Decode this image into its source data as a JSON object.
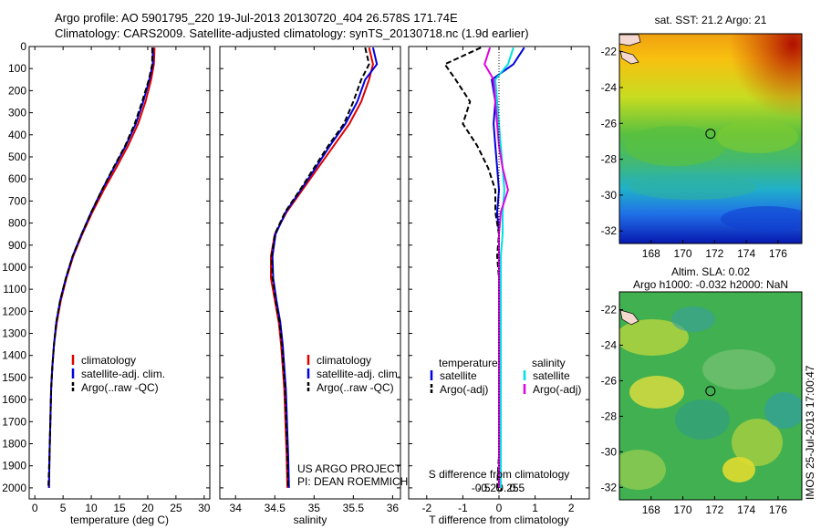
{
  "header": {
    "title_line1": "Argo profile: AO 5901795_220 19-Jul-2013 20130720_404 26.578S 171.74E",
    "title_line2": "Climatology: CARS2009. Satellite-adjusted climatology: synTS_20130718.nc (1.9d earlier)"
  },
  "footer": {
    "project_line1": "US ARGO PROJECT",
    "project_line2": "PI: DEAN ROEMMICH",
    "timestamp": "IMOS 25-Jul-2013 17:00:47"
  },
  "colors": {
    "climatology": "#e00000",
    "satellite": "#0000e0",
    "argo": "#000000",
    "salinity_satellite": "#00e0e0",
    "salinity_argo": "#e000e0"
  },
  "chart_data": [
    {
      "type": "line",
      "id": "temperature",
      "xlabel": "temperature (deg C)",
      "ylabel": "",
      "xlim": [
        -1,
        31
      ],
      "ylim": [
        2050,
        0
      ],
      "xticks": [
        0,
        5,
        10,
        15,
        20,
        25,
        30
      ],
      "yticks": [
        0,
        100,
        200,
        300,
        400,
        500,
        600,
        700,
        800,
        900,
        1000,
        1100,
        1200,
        1300,
        1400,
        1500,
        1600,
        1700,
        1800,
        1900,
        2000
      ],
      "legend": [
        "climatology",
        "satellite-adj. clim.",
        "Argo(..raw -QC)"
      ],
      "legend_position": "lower-middle",
      "series": [
        {
          "name": "climatology",
          "color": "#e00000",
          "style": "solid",
          "x": [
            21.2,
            21.1,
            20.6,
            19.6,
            18.3,
            16.5,
            14.4,
            12.2,
            10.2,
            8.4,
            6.8,
            5.6,
            4.6,
            3.9,
            3.4,
            3.1,
            2.9,
            2.8,
            2.7,
            2.6,
            2.5
          ],
          "y": [
            5,
            80,
            150,
            250,
            350,
            450,
            550,
            650,
            750,
            850,
            950,
            1050,
            1150,
            1250,
            1350,
            1450,
            1550,
            1650,
            1750,
            1850,
            2000
          ]
        },
        {
          "name": "satellite-adj. clim.",
          "color": "#0000e0",
          "style": "solid",
          "x": [
            20.9,
            20.9,
            20.3,
            19.2,
            17.9,
            16.1,
            14.0,
            11.9,
            10.0,
            8.3,
            6.7,
            5.5,
            4.5,
            3.8,
            3.4,
            3.1,
            2.9,
            2.8,
            2.7,
            2.6,
            2.5
          ],
          "y": [
            5,
            80,
            150,
            250,
            350,
            450,
            550,
            650,
            750,
            850,
            950,
            1050,
            1150,
            1250,
            1350,
            1450,
            1550,
            1650,
            1750,
            1850,
            2000
          ]
        },
        {
          "name": "Argo(..raw -QC)",
          "color": "#000000",
          "style": "dashed",
          "x": [
            20.8,
            20.8,
            20.2,
            19.0,
            17.7,
            16.0,
            13.9,
            11.9,
            10.0,
            8.3,
            6.7,
            5.5,
            4.5,
            3.8,
            3.4,
            3.1,
            2.9,
            2.8,
            2.7,
            2.6,
            2.4
          ],
          "y": [
            5,
            80,
            150,
            250,
            350,
            450,
            550,
            650,
            750,
            850,
            950,
            1050,
            1150,
            1250,
            1350,
            1450,
            1550,
            1650,
            1750,
            1850,
            2000
          ]
        }
      ]
    },
    {
      "type": "line",
      "id": "salinity",
      "xlabel": "salinity",
      "ylabel": "",
      "xlim": [
        33.8,
        36.1
      ],
      "ylim": [
        2050,
        0
      ],
      "xticks": [
        34,
        34.5,
        35,
        35.5,
        36
      ],
      "xticklabels": [
        "34",
        "34.5",
        "35",
        "35.5",
        "36"
      ],
      "legend": [
        "climatology",
        "satellite-adj. clim.",
        "Argo(..raw -QC)"
      ],
      "legend_position": "lower-middle",
      "series": [
        {
          "name": "climatology",
          "color": "#e00000",
          "style": "solid",
          "x": [
            35.7,
            35.75,
            35.7,
            35.6,
            35.45,
            35.25,
            35.05,
            34.85,
            34.65,
            34.5,
            34.45,
            34.45,
            34.5,
            34.55,
            34.58,
            34.6,
            34.62,
            34.63,
            34.64,
            34.65,
            34.66
          ],
          "y": [
            5,
            80,
            150,
            250,
            350,
            450,
            550,
            650,
            750,
            850,
            950,
            1050,
            1150,
            1250,
            1350,
            1450,
            1550,
            1650,
            1750,
            1850,
            2000
          ]
        },
        {
          "name": "satellite-adj. clim.",
          "color": "#0000e0",
          "style": "solid",
          "x": [
            35.75,
            35.8,
            35.65,
            35.55,
            35.4,
            35.2,
            35.02,
            34.83,
            34.64,
            34.51,
            34.47,
            34.48,
            34.52,
            34.57,
            34.6,
            34.62,
            34.64,
            34.65,
            34.66,
            34.67,
            34.68
          ],
          "y": [
            5,
            80,
            150,
            250,
            350,
            450,
            550,
            650,
            750,
            850,
            950,
            1050,
            1150,
            1250,
            1350,
            1450,
            1550,
            1650,
            1750,
            1850,
            2000
          ]
        },
        {
          "name": "Argo(..raw -QC)",
          "color": "#000000",
          "style": "dashed",
          "x": [
            35.65,
            35.7,
            35.6,
            35.5,
            35.38,
            35.18,
            35.0,
            34.82,
            34.63,
            34.5,
            34.46,
            34.47,
            34.51,
            34.56,
            34.59,
            34.61,
            34.63,
            34.64,
            34.65,
            34.66,
            34.67
          ],
          "y": [
            5,
            80,
            150,
            250,
            350,
            450,
            550,
            650,
            750,
            850,
            950,
            1050,
            1150,
            1250,
            1350,
            1450,
            1550,
            1650,
            1750,
            1850,
            2000
          ]
        }
      ]
    },
    {
      "type": "line",
      "id": "difference",
      "xlabel": "T difference from climatology",
      "x2label": "S difference from climatology",
      "ylabel": "",
      "xlim": [
        -2.5,
        2.5
      ],
      "ylim": [
        2050,
        0
      ],
      "xticks": [
        -2,
        -1,
        0,
        1,
        2
      ],
      "x2ticks": [
        -0.5,
        -0.25,
        0,
        0.25,
        0.5
      ],
      "x2ticklabels": [
        "-0.5",
        "-0.25",
        "0",
        "0.25",
        "0.5"
      ],
      "legend_headers": [
        "temperature",
        "salinity"
      ],
      "legend": [
        "satellite",
        "Argo(-adj)",
        "satellite",
        "Argo(-adj)"
      ],
      "legend_position": "lower-middle",
      "series": [
        {
          "name": "satellite",
          "color": "#0000e0",
          "style": "solid",
          "x": [
            0.7,
            0.4,
            -0.2,
            -0.1,
            -0.15,
            -0.1,
            -0.05,
            0.0,
            -0.05,
            0.0,
            0.0,
            0.0,
            0.0,
            0.0,
            0.0,
            0.0,
            0.0,
            0.0,
            0.0,
            0.0,
            0.0
          ],
          "y": [
            5,
            80,
            150,
            250,
            350,
            450,
            550,
            650,
            750,
            850,
            950,
            1050,
            1150,
            1250,
            1350,
            1450,
            1550,
            1650,
            1750,
            1850,
            2000
          ]
        },
        {
          "name": "Argo(-adj)",
          "color": "#000000",
          "style": "dashed",
          "x": [
            -0.5,
            -1.5,
            -1.2,
            -0.8,
            -1.0,
            -0.6,
            -0.3,
            -0.1,
            -0.1,
            0.0,
            -0.05,
            0.0,
            0.0,
            0.0,
            0.0,
            0.0,
            0.0,
            0.0,
            0.0,
            0.0,
            -0.05
          ],
          "y": [
            5,
            80,
            150,
            250,
            350,
            450,
            550,
            650,
            750,
            850,
            950,
            1050,
            1150,
            1250,
            1350,
            1450,
            1550,
            1650,
            1750,
            1850,
            2000
          ]
        },
        {
          "name": "satellite",
          "color": "#00e0e0",
          "style": "solid",
          "x": [
            0.08,
            0.05,
            -0.02,
            -0.01,
            0.0,
            0.01,
            0.02,
            0.03,
            0.02,
            0.02,
            0.01,
            0.01,
            0.01,
            0.01,
            0.01,
            0.01,
            0.01,
            0.01,
            0.01,
            0.01,
            0.01
          ],
          "y": [
            5,
            80,
            150,
            250,
            350,
            450,
            550,
            650,
            750,
            850,
            950,
            1050,
            1150,
            1250,
            1350,
            1450,
            1550,
            1650,
            1750,
            1850,
            2000
          ]
        },
        {
          "name": "Argo(-adj)",
          "color": "#e000e0",
          "style": "solid",
          "x": [
            -0.05,
            -0.08,
            -0.03,
            -0.02,
            -0.01,
            0.0,
            0.02,
            0.05,
            0.01,
            0.0,
            0.0,
            0.0,
            0.0,
            0.0,
            0.0,
            0.0,
            0.0,
            0.0,
            0.0,
            0.0,
            0.0
          ],
          "y": [
            5,
            80,
            150,
            250,
            350,
            450,
            550,
            650,
            750,
            850,
            950,
            1050,
            1150,
            1250,
            1350,
            1450,
            1550,
            1650,
            1750,
            1850,
            2000
          ]
        }
      ]
    },
    {
      "type": "heatmap",
      "id": "sst_map",
      "title": "sat. SST: 21.2 Argo: 21",
      "xlim": [
        166,
        177.5
      ],
      "ylim": [
        -32.7,
        -21
      ],
      "xticks": [
        168,
        170,
        172,
        174,
        176
      ],
      "yticks": [
        -22,
        -24,
        -26,
        -28,
        -30,
        -32
      ],
      "marker": {
        "lon": 171.74,
        "lat": -26.578
      }
    },
    {
      "type": "heatmap",
      "id": "sla_map",
      "title_line1": "Altim. SLA: 0.02",
      "title_line2": "Argo h1000: -0.032 h2000: NaN",
      "xlim": [
        166,
        177.5
      ],
      "ylim": [
        -32.7,
        -21
      ],
      "xticks": [
        168,
        170,
        172,
        174,
        176
      ],
      "yticks": [
        -22,
        -24,
        -26,
        -28,
        -30,
        -32
      ],
      "marker": {
        "lon": 171.74,
        "lat": -26.578
      }
    }
  ]
}
